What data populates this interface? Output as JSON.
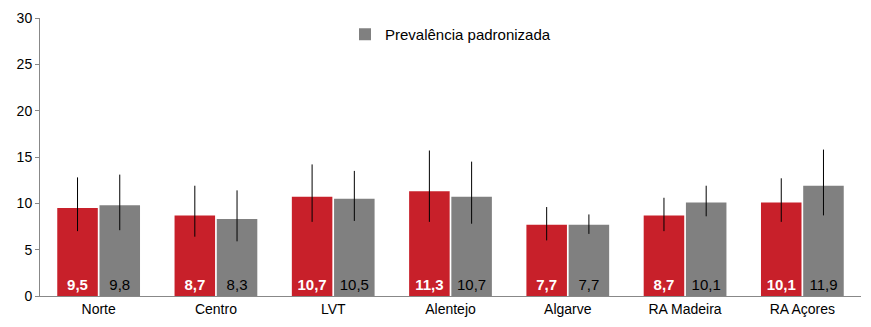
{
  "chart_data": {
    "type": "bar",
    "categories": [
      "Norte",
      "Centro",
      "LVT",
      "Alentejo",
      "Algarve",
      "RA Madeira",
      "RA Açores"
    ],
    "series": [
      {
        "color": "#c8202a",
        "values": [
          9.5,
          8.7,
          10.7,
          11.3,
          7.7,
          8.7,
          10.1
        ],
        "value_labels": [
          "9,5",
          "8,7",
          "10,7",
          "11,3",
          "7,7",
          "8,7",
          "10,1"
        ],
        "ci_low": [
          7.0,
          6.4,
          8.0,
          8.0,
          6.0,
          7.0,
          8.0
        ],
        "ci_high": [
          12.8,
          11.9,
          14.2,
          15.7,
          9.6,
          10.6,
          12.7
        ]
      },
      {
        "name": "Prevalência padronizada",
        "color": "#808080",
        "values": [
          9.8,
          8.3,
          10.5,
          10.7,
          7.7,
          10.1,
          11.9
        ],
        "value_labels": [
          "9,8",
          "8,3",
          "10,5",
          "10,7",
          "7,7",
          "10,1",
          "11,9"
        ],
        "ci_low": [
          7.1,
          5.9,
          8.1,
          7.8,
          6.7,
          8.6,
          8.7
        ],
        "ci_high": [
          13.1,
          11.4,
          13.5,
          14.5,
          8.8,
          11.9,
          15.8
        ]
      }
    ],
    "ylim": [
      0,
      30
    ],
    "yticks": [
      0,
      5,
      10,
      15,
      20,
      25,
      30
    ],
    "grid": false,
    "legend": "top",
    "data_labels": true
  }
}
